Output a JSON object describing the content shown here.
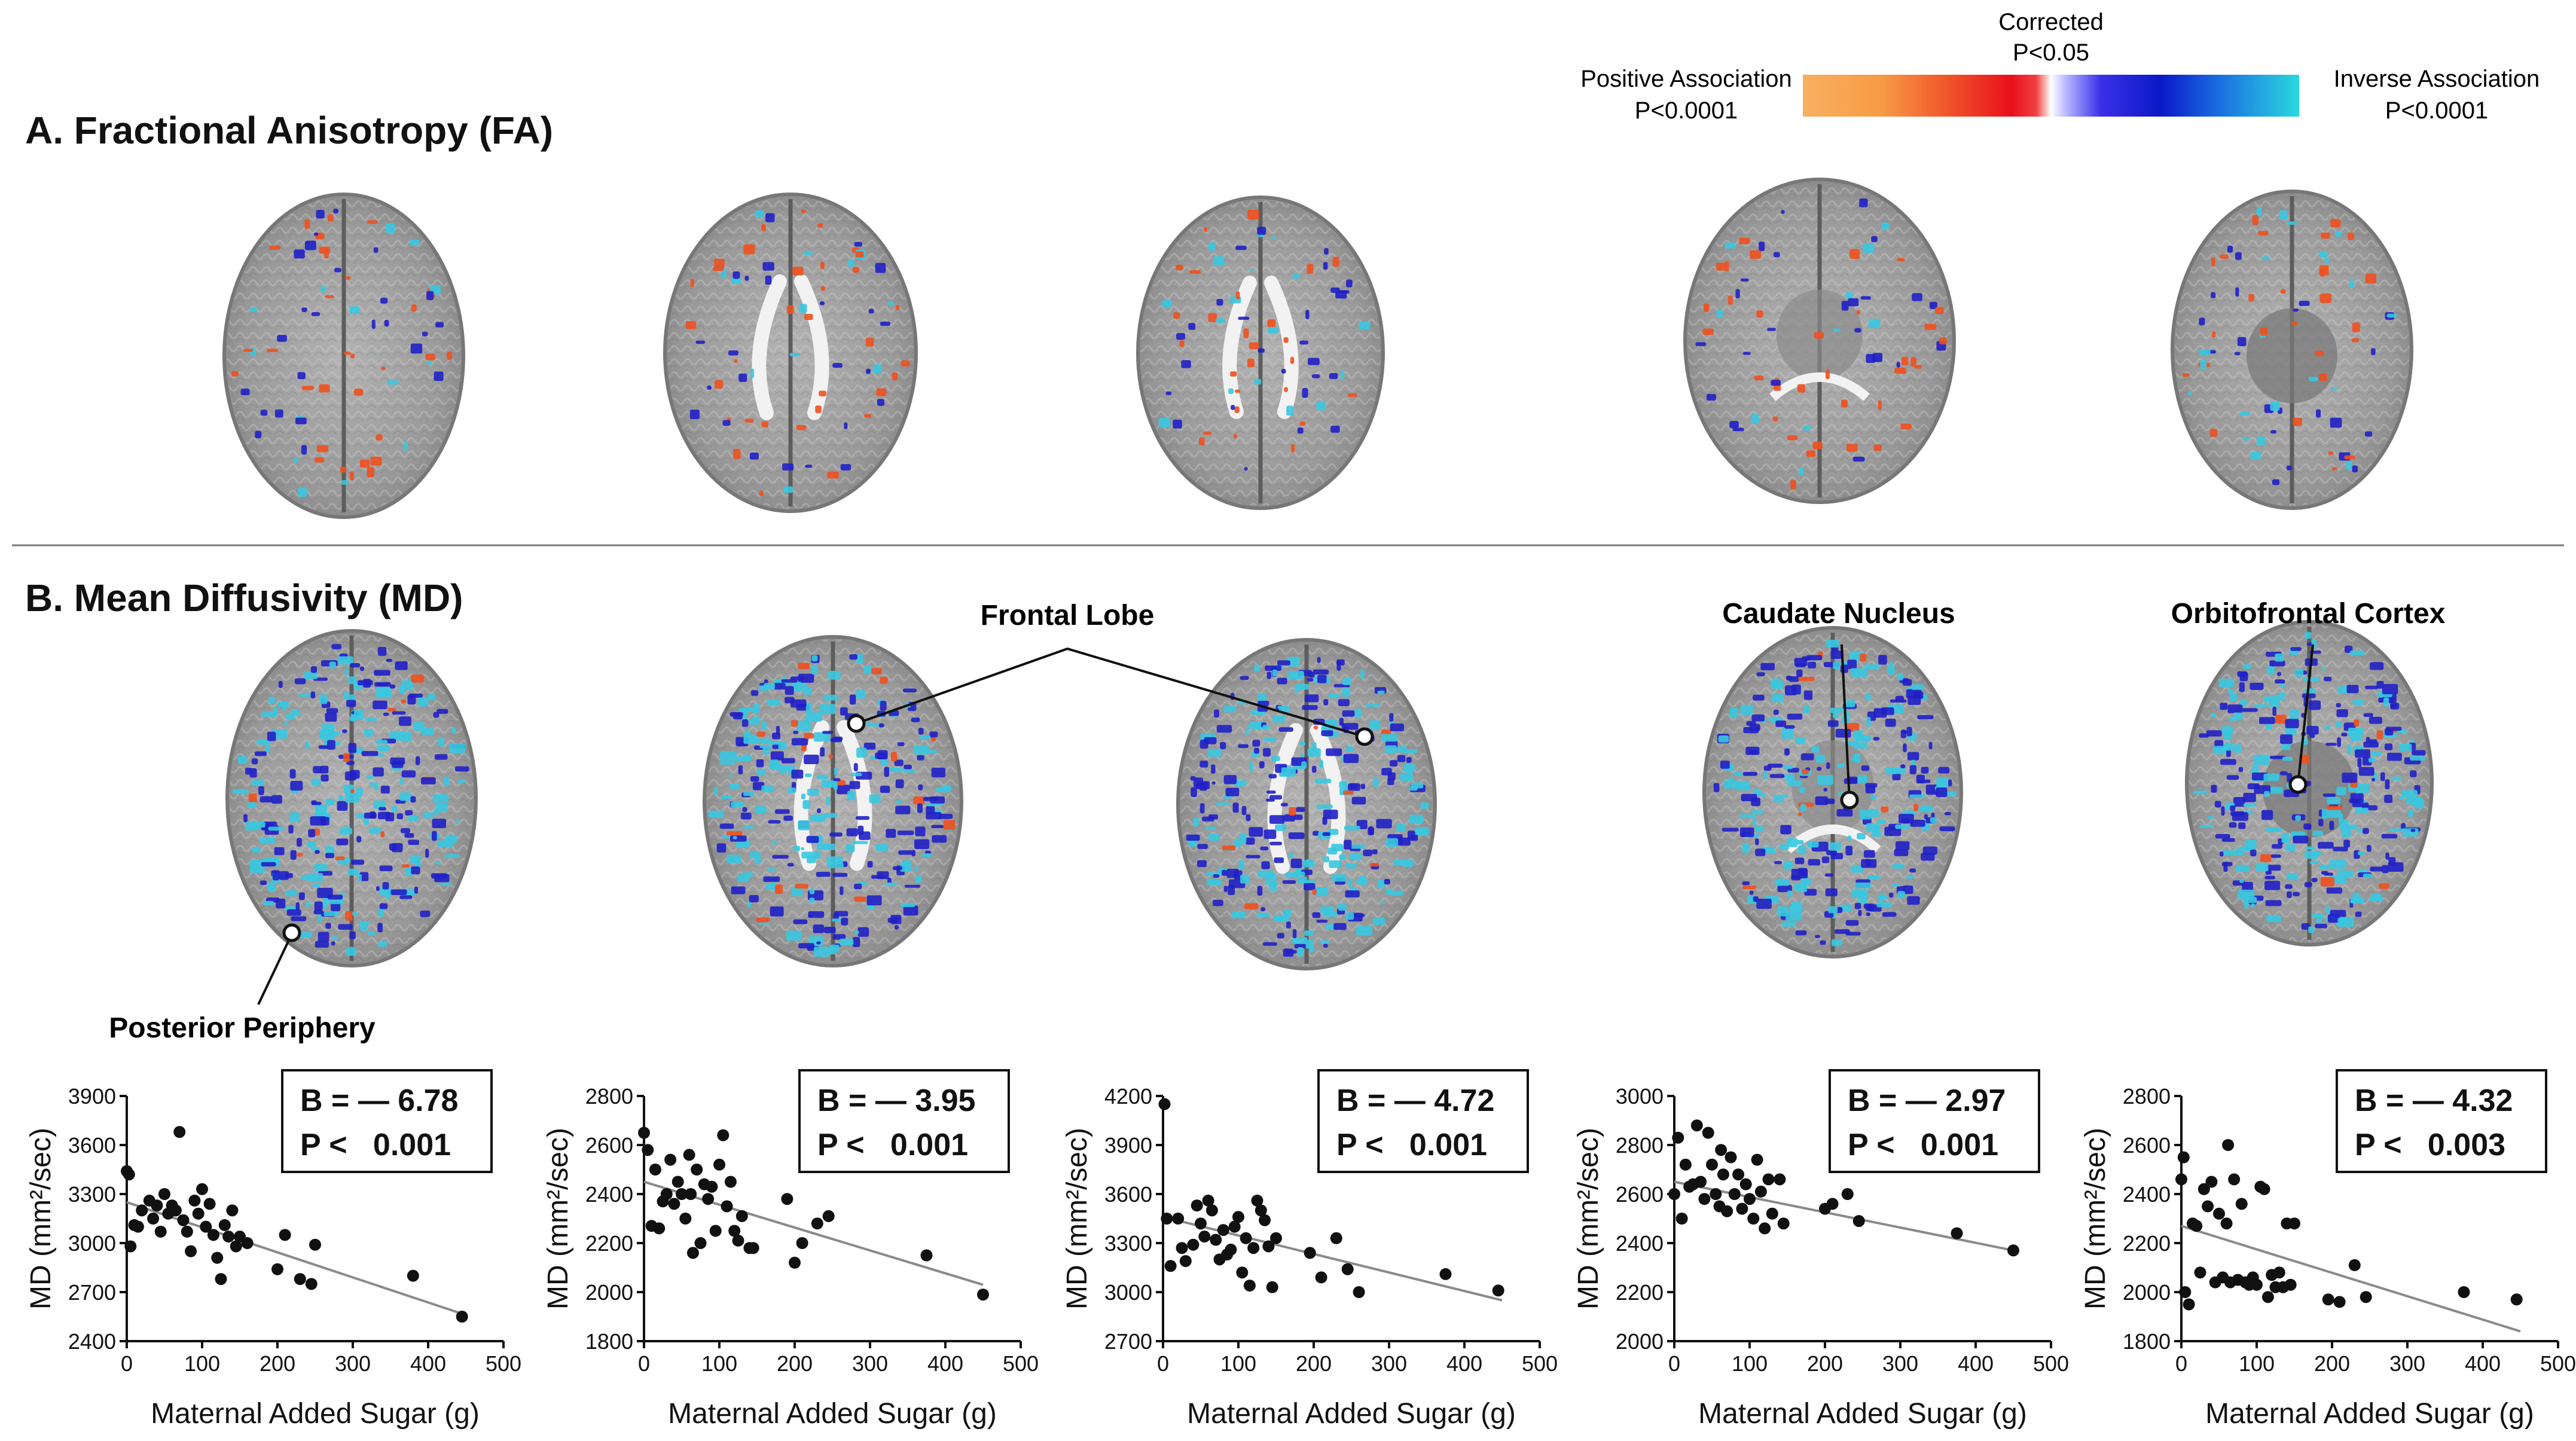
{
  "figure": {
    "panel_a": {
      "title": "A. Fractional Anisotropy (FA)"
    },
    "panel_b": {
      "title": "B. Mean Diffusivity (MD)"
    },
    "colorbar": {
      "left_label_1": "Positive Association",
      "left_label_2": "P<0.0001",
      "center_label_1": "Corrected",
      "center_label_2": "P<0.05",
      "right_label_1": "Inverse Association",
      "right_label_2": "P<0.0001",
      "positive_colors": [
        "#f7b35c",
        "#f57a2c",
        "#e8101a",
        "#ffffff"
      ],
      "inverse_colors": [
        "#ffffff",
        "#3030e0",
        "#0a1fd0",
        "#2ad7e0"
      ]
    },
    "annotations": {
      "frontal_lobe": "Frontal Lobe",
      "caudate_nucleus": "Caudate Nucleus",
      "orbitofrontal_cortex": "Orbitofrontal Cortex",
      "posterior_periphery": "Posterior Periphery"
    },
    "colors": {
      "positive": "#f0501e",
      "inverse_dark": "#2020c8",
      "inverse_light": "#38c8e0",
      "brain": "#9d9d9d"
    }
  },
  "chart_data": [
    {
      "type": "scatter",
      "xlabel": "Maternal Added Sugar (g)",
      "ylabel": "MD (mm²/sec)",
      "xlim": [
        0,
        500
      ],
      "ylim": [
        2400,
        3900
      ],
      "xticks": [
        "0",
        "100",
        "200",
        "300",
        "400",
        "500"
      ],
      "yticks": [
        "2400",
        "2700",
        "3000",
        "3300",
        "3600",
        "3900"
      ],
      "stat_b": "B = — 6.78",
      "stat_p": "P <   0.001",
      "fit": [
        [
          0,
          3250
        ],
        [
          450,
          2560
        ]
      ],
      "points": [
        [
          0,
          3440
        ],
        [
          3,
          3420
        ],
        [
          5,
          2980
        ],
        [
          10,
          3110
        ],
        [
          15,
          3100
        ],
        [
          20,
          3200
        ],
        [
          30,
          3260
        ],
        [
          35,
          3150
        ],
        [
          40,
          3230
        ],
        [
          45,
          3070
        ],
        [
          50,
          3300
        ],
        [
          55,
          3180
        ],
        [
          60,
          3230
        ],
        [
          65,
          3200
        ],
        [
          70,
          3680
        ],
        [
          75,
          3140
        ],
        [
          80,
          3070
        ],
        [
          85,
          2950
        ],
        [
          90,
          3260
        ],
        [
          95,
          3180
        ],
        [
          100,
          3330
        ],
        [
          105,
          3100
        ],
        [
          110,
          3240
        ],
        [
          115,
          3050
        ],
        [
          120,
          2910
        ],
        [
          125,
          2780
        ],
        [
          130,
          3110
        ],
        [
          135,
          3040
        ],
        [
          140,
          3200
        ],
        [
          145,
          2980
        ],
        [
          150,
          3040
        ],
        [
          160,
          3000
        ],
        [
          200,
          2840
        ],
        [
          210,
          3050
        ],
        [
          230,
          2780
        ],
        [
          245,
          2750
        ],
        [
          250,
          2990
        ],
        [
          380,
          2800
        ],
        [
          445,
          2550
        ]
      ]
    },
    {
      "type": "scatter",
      "xlabel": "Maternal Added Sugar (g)",
      "ylabel": "MD (mm²/sec)",
      "xlim": [
        0,
        500
      ],
      "ylim": [
        1800,
        2800
      ],
      "xticks": [
        "0",
        "100",
        "200",
        "300",
        "400",
        "500"
      ],
      "yticks": [
        "1800",
        "2000",
        "2200",
        "2400",
        "2600",
        "2800"
      ],
      "stat_b": "B = — 3.95",
      "stat_p": "P <   0.001",
      "fit": [
        [
          0,
          2450
        ],
        [
          450,
          2030
        ]
      ],
      "points": [
        [
          0,
          2650
        ],
        [
          5,
          2580
        ],
        [
          10,
          2270
        ],
        [
          15,
          2500
        ],
        [
          20,
          2260
        ],
        [
          25,
          2370
        ],
        [
          30,
          2400
        ],
        [
          35,
          2540
        ],
        [
          40,
          2360
        ],
        [
          45,
          2450
        ],
        [
          50,
          2400
        ],
        [
          55,
          2300
        ],
        [
          60,
          2560
        ],
        [
          62,
          2400
        ],
        [
          65,
          2160
        ],
        [
          70,
          2500
        ],
        [
          75,
          2200
        ],
        [
          80,
          2440
        ],
        [
          85,
          2380
        ],
        [
          90,
          2430
        ],
        [
          95,
          2250
        ],
        [
          100,
          2520
        ],
        [
          105,
          2640
        ],
        [
          110,
          2350
        ],
        [
          115,
          2450
        ],
        [
          120,
          2250
        ],
        [
          125,
          2210
        ],
        [
          130,
          2310
        ],
        [
          140,
          2180
        ],
        [
          145,
          2180
        ],
        [
          190,
          2380
        ],
        [
          200,
          2120
        ],
        [
          210,
          2200
        ],
        [
          230,
          2280
        ],
        [
          245,
          2310
        ],
        [
          375,
          2150
        ],
        [
          450,
          1990
        ]
      ]
    },
    {
      "type": "scatter",
      "xlabel": "Maternal Added Sugar (g)",
      "ylabel": "MD (mm²/sec)",
      "xlim": [
        0,
        500
      ],
      "ylim": [
        2700,
        4200
      ],
      "xticks": [
        "0",
        "100",
        "200",
        "300",
        "400",
        "500"
      ],
      "yticks": [
        "2700",
        "3000",
        "3300",
        "3600",
        "3900",
        "4200"
      ],
      "stat_b": "B = — 4.72",
      "stat_p": "P <   0.001",
      "fit": [
        [
          0,
          3460
        ],
        [
          450,
          2950
        ]
      ],
      "points": [
        [
          2,
          4150
        ],
        [
          5,
          3450
        ],
        [
          10,
          3160
        ],
        [
          20,
          3450
        ],
        [
          25,
          3270
        ],
        [
          30,
          3190
        ],
        [
          40,
          3290
        ],
        [
          45,
          3530
        ],
        [
          50,
          3420
        ],
        [
          55,
          3340
        ],
        [
          60,
          3560
        ],
        [
          65,
          3500
        ],
        [
          70,
          3320
        ],
        [
          75,
          3200
        ],
        [
          80,
          3380
        ],
        [
          85,
          3230
        ],
        [
          90,
          3260
        ],
        [
          95,
          3400
        ],
        [
          100,
          3460
        ],
        [
          105,
          3120
        ],
        [
          110,
          3330
        ],
        [
          115,
          3040
        ],
        [
          120,
          3270
        ],
        [
          125,
          3560
        ],
        [
          130,
          3500
        ],
        [
          135,
          3440
        ],
        [
          140,
          3280
        ],
        [
          145,
          3030
        ],
        [
          150,
          3330
        ],
        [
          195,
          3240
        ],
        [
          210,
          3090
        ],
        [
          230,
          3330
        ],
        [
          245,
          3140
        ],
        [
          260,
          3000
        ],
        [
          375,
          3110
        ],
        [
          445,
          3010
        ]
      ]
    },
    {
      "type": "scatter",
      "xlabel": "Maternal Added Sugar (g)",
      "ylabel": "MD (mm²/sec)",
      "xlim": [
        0,
        500
      ],
      "ylim": [
        2000,
        3000
      ],
      "xticks": [
        "0",
        "100",
        "200",
        "300",
        "400",
        "500"
      ],
      "yticks": [
        "2000",
        "2200",
        "2400",
        "2600",
        "2800",
        "3000"
      ],
      "stat_b": "B = — 2.97",
      "stat_p": "P <   0.001",
      "fit": [
        [
          0,
          2650
        ],
        [
          450,
          2370
        ]
      ],
      "points": [
        [
          0,
          2600
        ],
        [
          5,
          2830
        ],
        [
          10,
          2500
        ],
        [
          15,
          2720
        ],
        [
          20,
          2630
        ],
        [
          25,
          2640
        ],
        [
          30,
          2880
        ],
        [
          35,
          2650
        ],
        [
          40,
          2580
        ],
        [
          45,
          2850
        ],
        [
          50,
          2720
        ],
        [
          55,
          2600
        ],
        [
          60,
          2550
        ],
        [
          62,
          2780
        ],
        [
          65,
          2680
        ],
        [
          70,
          2530
        ],
        [
          75,
          2750
        ],
        [
          80,
          2600
        ],
        [
          85,
          2680
        ],
        [
          90,
          2540
        ],
        [
          95,
          2640
        ],
        [
          100,
          2580
        ],
        [
          105,
          2500
        ],
        [
          110,
          2740
        ],
        [
          115,
          2610
        ],
        [
          120,
          2460
        ],
        [
          125,
          2660
        ],
        [
          130,
          2520
        ],
        [
          140,
          2660
        ],
        [
          145,
          2480
        ],
        [
          200,
          2540
        ],
        [
          210,
          2560
        ],
        [
          230,
          2600
        ],
        [
          245,
          2490
        ],
        [
          375,
          2440
        ],
        [
          450,
          2370
        ]
      ]
    },
    {
      "type": "scatter",
      "xlabel": "Maternal Added Sugar (g)",
      "ylabel": "MD (mm²/sec)",
      "xlim": [
        0,
        500
      ],
      "ylim": [
        1800,
        2800
      ],
      "xticks": [
        "0",
        "100",
        "200",
        "300",
        "400",
        "500"
      ],
      "yticks": [
        "1800",
        "2000",
        "2200",
        "2400",
        "2600",
        "2800"
      ],
      "stat_b": "B = — 4.32",
      "stat_p": "P <   0.003",
      "fit": [
        [
          0,
          2270
        ],
        [
          450,
          1840
        ]
      ],
      "points": [
        [
          0,
          2460
        ],
        [
          3,
          2550
        ],
        [
          5,
          2000
        ],
        [
          10,
          1950
        ],
        [
          15,
          2280
        ],
        [
          20,
          2270
        ],
        [
          25,
          2080
        ],
        [
          30,
          2420
        ],
        [
          35,
          2350
        ],
        [
          40,
          2450
        ],
        [
          45,
          2040
        ],
        [
          50,
          2320
        ],
        [
          55,
          2060
        ],
        [
          60,
          2280
        ],
        [
          62,
          2600
        ],
        [
          65,
          2040
        ],
        [
          70,
          2460
        ],
        [
          75,
          2050
        ],
        [
          80,
          2360
        ],
        [
          85,
          2040
        ],
        [
          90,
          2030
        ],
        [
          95,
          2060
        ],
        [
          100,
          2030
        ],
        [
          105,
          2430
        ],
        [
          110,
          2420
        ],
        [
          115,
          1980
        ],
        [
          120,
          2070
        ],
        [
          125,
          2020
        ],
        [
          130,
          2080
        ],
        [
          135,
          2020
        ],
        [
          140,
          2280
        ],
        [
          145,
          2030
        ],
        [
          150,
          2280
        ],
        [
          195,
          1970
        ],
        [
          210,
          1960
        ],
        [
          230,
          2110
        ],
        [
          245,
          1980
        ],
        [
          375,
          2000
        ],
        [
          445,
          1970
        ]
      ]
    }
  ]
}
